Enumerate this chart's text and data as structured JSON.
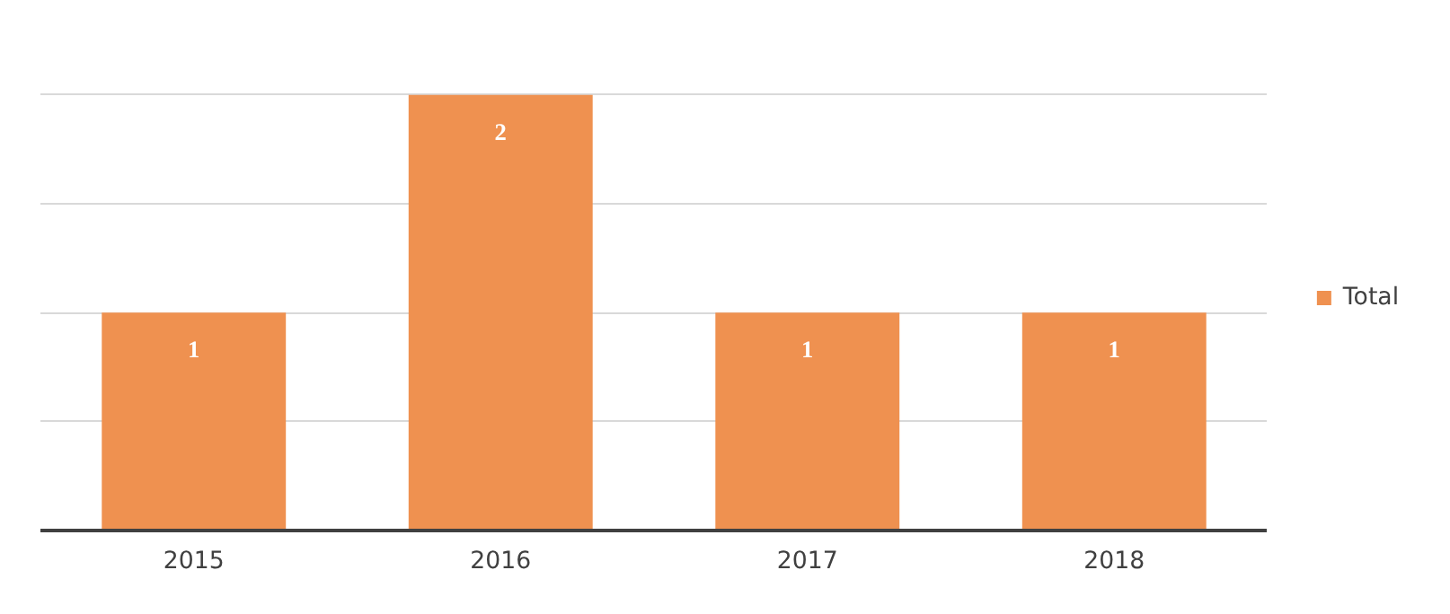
{
  "chart_data": {
    "type": "bar",
    "categories": [
      "2015",
      "2016",
      "2017",
      "2018"
    ],
    "series": [
      {
        "name": "Total",
        "color": "#ef9150",
        "values": [
          1,
          2,
          1,
          1
        ]
      }
    ],
    "tick_labels": "x",
    "grid": "y",
    "legend": "right",
    "data_labels": true
  }
}
